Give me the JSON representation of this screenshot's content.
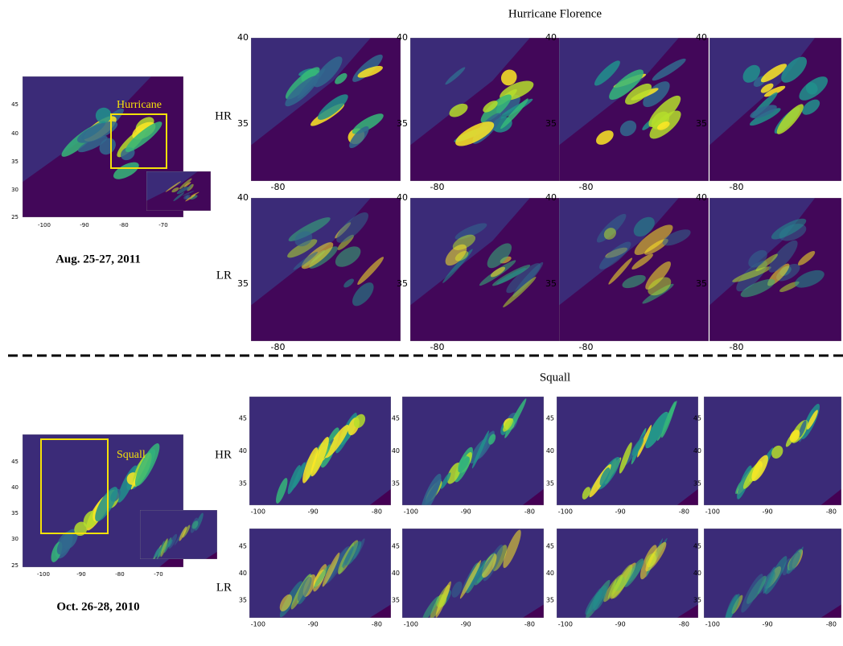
{
  "sections": [
    {
      "title": "Hurricane Florence",
      "overview": {
        "label": "Hurricane",
        "yticks": [
          "45",
          "40",
          "35",
          "30",
          "25"
        ],
        "xticks": [
          "-100",
          "-90",
          "-80",
          "-70"
        ],
        "caption": "Aug. 25-27, 2011"
      },
      "rows": [
        "HR",
        "LR"
      ],
      "panel_yticks": [
        "40",
        "35"
      ],
      "panel_xticks": [
        "-80"
      ]
    },
    {
      "title": "Squall",
      "overview": {
        "label": "Squall",
        "yticks": [
          "45",
          "40",
          "35",
          "30",
          "25"
        ],
        "xticks": [
          "-100",
          "-90",
          "-80",
          "-70"
        ],
        "caption": "Oct. 26-28, 2010"
      },
      "rows": [
        "HR",
        "LR"
      ],
      "panel_yticks": [
        "45",
        "40",
        "35"
      ],
      "panel_xticks": [
        "-100",
        "-90",
        "-80"
      ]
    }
  ]
}
